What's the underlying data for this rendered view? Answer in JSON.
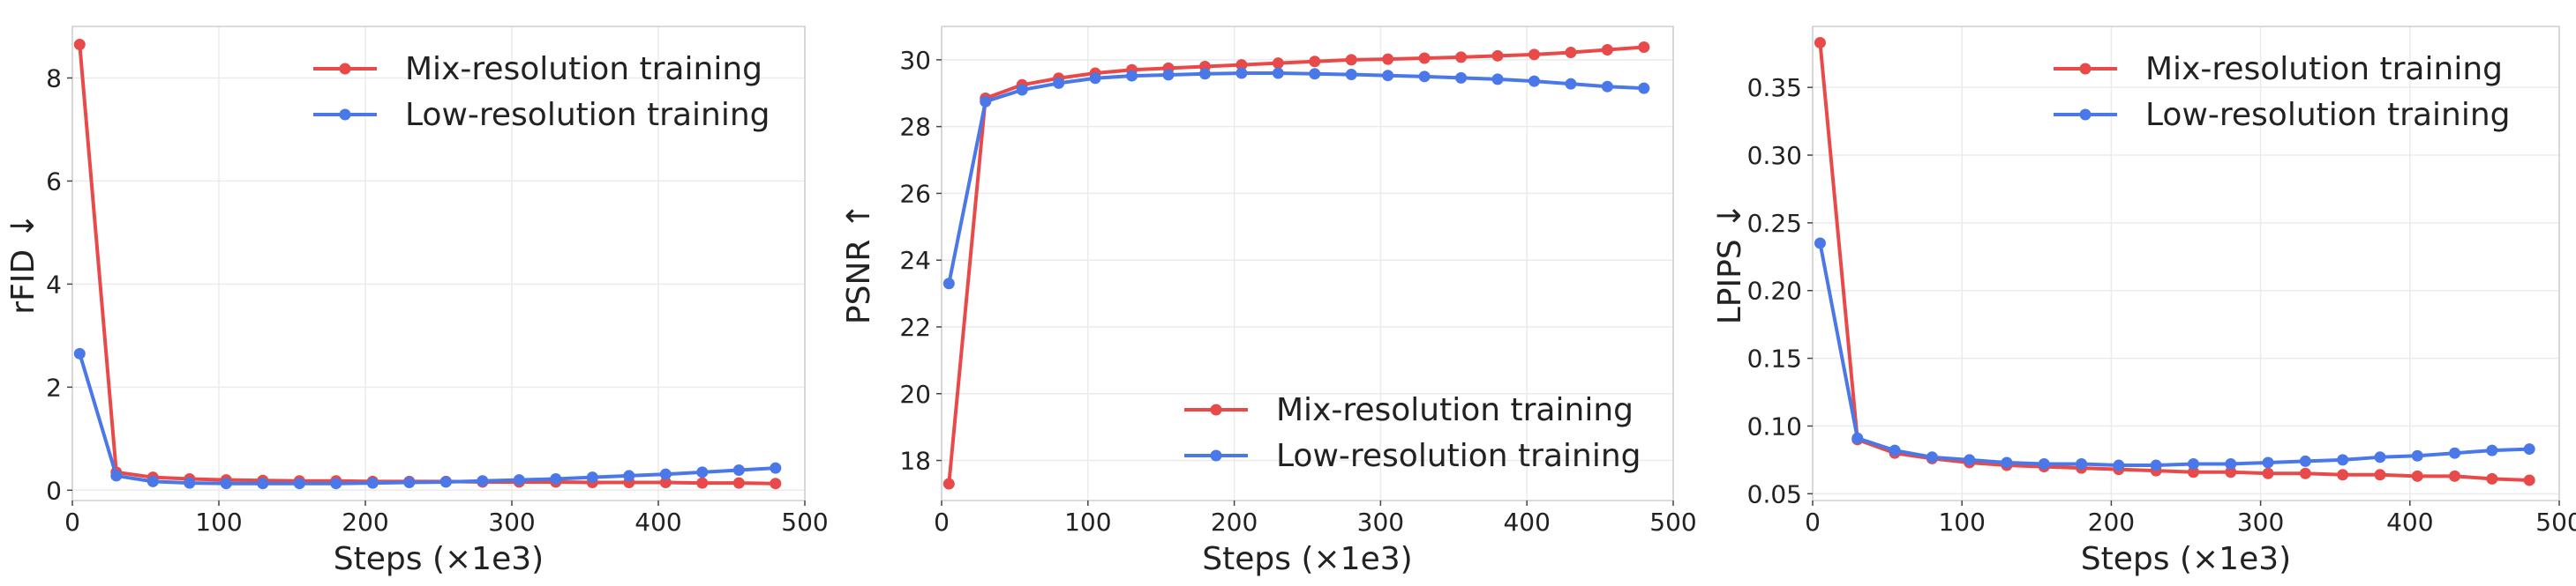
{
  "chart_data": [
    {
      "type": "line",
      "title": "",
      "xlabel": "Steps (×1e3)",
      "ylabel": "rFID ↓",
      "xlim": [
        0,
        500
      ],
      "ylim": [
        -0.2,
        9.0
      ],
      "xticks": [
        0,
        100,
        200,
        300,
        400,
        500
      ],
      "yticks": [
        0,
        2,
        4,
        6,
        8
      ],
      "ytick_labels": [
        "0",
        "2",
        "4",
        "6",
        "8"
      ],
      "grid": true,
      "legend_position": "top-right",
      "x": [
        5,
        30,
        55,
        80,
        105,
        130,
        155,
        180,
        205,
        230,
        255,
        280,
        305,
        330,
        355,
        380,
        405,
        430,
        455,
        480
      ],
      "series": [
        {
          "name": "Mix-resolution training",
          "color": "#e84a4a",
          "values": [
            8.65,
            0.35,
            0.25,
            0.22,
            0.2,
            0.19,
            0.18,
            0.18,
            0.17,
            0.17,
            0.17,
            0.16,
            0.16,
            0.16,
            0.15,
            0.15,
            0.15,
            0.14,
            0.14,
            0.13
          ]
        },
        {
          "name": "Low-resolution training",
          "color": "#4a78e8",
          "values": [
            2.65,
            0.28,
            0.17,
            0.14,
            0.13,
            0.13,
            0.13,
            0.13,
            0.14,
            0.15,
            0.16,
            0.18,
            0.2,
            0.22,
            0.25,
            0.28,
            0.31,
            0.35,
            0.39,
            0.43
          ]
        }
      ]
    },
    {
      "type": "line",
      "title": "",
      "xlabel": "Steps (×1e3)",
      "ylabel": "PSNR ↑",
      "xlim": [
        0,
        500
      ],
      "ylim": [
        16.8,
        31.0
      ],
      "xticks": [
        0,
        100,
        200,
        300,
        400,
        500
      ],
      "yticks": [
        18,
        20,
        22,
        24,
        26,
        28,
        30
      ],
      "ytick_labels": [
        "18",
        "20",
        "22",
        "24",
        "26",
        "28",
        "30"
      ],
      "grid": true,
      "legend_position": "bottom-right",
      "x": [
        5,
        30,
        55,
        80,
        105,
        130,
        155,
        180,
        205,
        230,
        255,
        280,
        305,
        330,
        355,
        380,
        405,
        430,
        455,
        480
      ],
      "series": [
        {
          "name": "Mix-resolution training",
          "color": "#e84a4a",
          "values": [
            17.3,
            28.85,
            29.25,
            29.45,
            29.6,
            29.7,
            29.75,
            29.8,
            29.85,
            29.9,
            29.95,
            30.0,
            30.02,
            30.05,
            30.08,
            30.12,
            30.16,
            30.22,
            30.3,
            30.38
          ]
        },
        {
          "name": "Low-resolution training",
          "color": "#4a78e8",
          "values": [
            23.3,
            28.75,
            29.1,
            29.3,
            29.45,
            29.52,
            29.55,
            29.58,
            29.6,
            29.6,
            29.58,
            29.56,
            29.53,
            29.5,
            29.46,
            29.42,
            29.36,
            29.28,
            29.2,
            29.15
          ]
        }
      ]
    },
    {
      "type": "line",
      "title": "",
      "xlabel": "Steps (×1e3)",
      "ylabel": "LPIPS ↓",
      "xlim": [
        0,
        500
      ],
      "ylim": [
        0.045,
        0.395
      ],
      "xticks": [
        0,
        100,
        200,
        300,
        400,
        500
      ],
      "yticks": [
        0.05,
        0.1,
        0.15,
        0.2,
        0.25,
        0.3,
        0.35
      ],
      "ytick_labels": [
        "0.05",
        "0.10",
        "0.15",
        "0.20",
        "0.25",
        "0.30",
        "0.35"
      ],
      "grid": true,
      "legend_position": "top-right",
      "x": [
        5,
        30,
        55,
        80,
        105,
        130,
        155,
        180,
        205,
        230,
        255,
        280,
        305,
        330,
        355,
        380,
        405,
        430,
        455,
        480
      ],
      "series": [
        {
          "name": "Mix-resolution training",
          "color": "#e84a4a",
          "values": [
            0.383,
            0.09,
            0.08,
            0.076,
            0.073,
            0.071,
            0.07,
            0.069,
            0.068,
            0.067,
            0.066,
            0.066,
            0.065,
            0.065,
            0.064,
            0.064,
            0.063,
            0.063,
            0.061,
            0.06
          ]
        },
        {
          "name": "Low-resolution training",
          "color": "#4a78e8",
          "values": [
            0.235,
            0.091,
            0.082,
            0.077,
            0.075,
            0.073,
            0.072,
            0.072,
            0.071,
            0.071,
            0.072,
            0.072,
            0.073,
            0.074,
            0.075,
            0.077,
            0.078,
            0.08,
            0.082,
            0.083
          ]
        }
      ]
    }
  ]
}
